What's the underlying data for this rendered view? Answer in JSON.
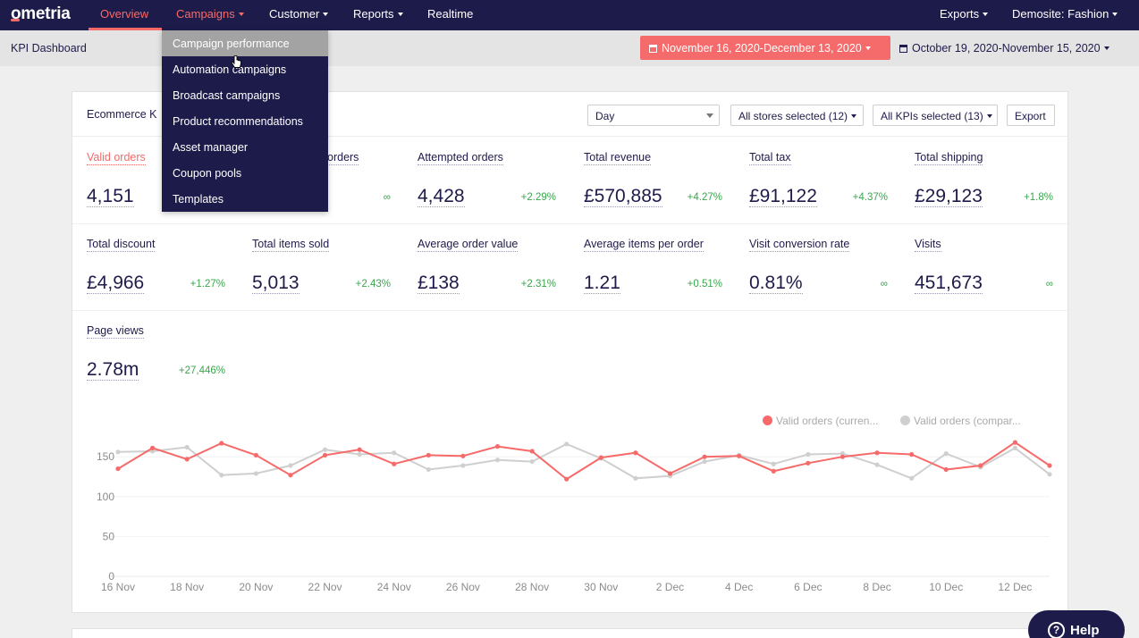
{
  "app": {
    "logo": "ometria"
  },
  "nav": {
    "items": [
      {
        "label": "Overview",
        "active": true
      },
      {
        "label": "Campaigns",
        "dropdown": true,
        "open": true
      },
      {
        "label": "Customer",
        "dropdown": true
      },
      {
        "label": "Reports",
        "dropdown": true
      },
      {
        "label": "Realtime"
      }
    ],
    "right": [
      {
        "label": "Exports",
        "dropdown": true
      },
      {
        "label": "Demosite: Fashion",
        "dropdown": true
      }
    ]
  },
  "campaigns_menu": {
    "items": [
      "Campaign performance",
      "Automation campaigns",
      "Broadcast campaigns",
      "Product recommendations",
      "Asset manager",
      "Coupon pools",
      "Templates"
    ],
    "hovered_index": 0
  },
  "subheader": {
    "title": "KPI Dashboard",
    "date_range": "November 16, 2020-December 13, 2020",
    "compare_range": "October 19, 2020-November 15, 2020"
  },
  "card": {
    "title": "Ecommerce K",
    "granularity": "Day",
    "stores": "All stores selected (12)",
    "kpis_selected": "All KPIs selected (13)",
    "export": "Export"
  },
  "kpis": [
    {
      "label": "Valid orders",
      "value": "4,151",
      "change": "",
      "selected": true
    },
    {
      "label": "orders",
      "value": "",
      "change": "∞"
    },
    {
      "label": "Attempted orders",
      "value": "4,428",
      "change": "+2.29%"
    },
    {
      "label": "Total revenue",
      "value": "£570,885",
      "change": "+4.27%"
    },
    {
      "label": "Total tax",
      "value": "£91,122",
      "change": "+4.37%"
    },
    {
      "label": "Total shipping",
      "value": "£29,123",
      "change": "+1.8%"
    },
    {
      "label": "Total discount",
      "value": "£4,966",
      "change": "+1.27%"
    },
    {
      "label": "Total items sold",
      "value": "5,013",
      "change": "+2.43%"
    },
    {
      "label": "Average order value",
      "value": "£138",
      "change": "+2.31%"
    },
    {
      "label": "Average items per order",
      "value": "1.21",
      "change": "+0.51%"
    },
    {
      "label": "Visit conversion rate",
      "value": "0.81%",
      "change": "∞"
    },
    {
      "label": "Visits",
      "value": "451,673",
      "change": "∞"
    },
    {
      "label": "Page views",
      "value": "2.78m",
      "change": "+27,446%"
    }
  ],
  "chart_data": {
    "type": "line",
    "ylim": [
      0,
      200
    ],
    "yticks": [
      0,
      50,
      100,
      150
    ],
    "x": [
      "16 Nov",
      "17 Nov",
      "18 Nov",
      "19 Nov",
      "20 Nov",
      "21 Nov",
      "22 Nov",
      "23 Nov",
      "24 Nov",
      "25 Nov",
      "26 Nov",
      "27 Nov",
      "28 Nov",
      "29 Nov",
      "30 Nov",
      "1 Dec",
      "2 Dec",
      "3 Dec",
      "4 Dec",
      "5 Dec",
      "6 Dec",
      "7 Dec",
      "8 Dec",
      "9 Dec",
      "10 Dec",
      "11 Dec",
      "12 Dec",
      "13 Dec"
    ],
    "xtick_labels": [
      "16 Nov",
      "18 Nov",
      "20 Nov",
      "22 Nov",
      "24 Nov",
      "26 Nov",
      "28 Nov",
      "30 Nov",
      "2 Dec",
      "4 Dec",
      "6 Dec",
      "8 Dec",
      "10 Dec",
      "12 Dec"
    ],
    "series": [
      {
        "name": "Valid orders (curren...",
        "color": "#f76a6a",
        "values": [
          135,
          161,
          147,
          167,
          152,
          127,
          152,
          159,
          141,
          152,
          151,
          163,
          157,
          122,
          149,
          155,
          129,
          150,
          151,
          132,
          142,
          150,
          155,
          153,
          134,
          139,
          168,
          139
        ]
      },
      {
        "name": "Valid orders (compar...",
        "color": "#cfcfcf",
        "values": [
          156,
          157,
          162,
          127,
          129,
          139,
          159,
          153,
          155,
          134,
          139,
          146,
          144,
          166,
          148,
          123,
          126,
          144,
          152,
          141,
          153,
          154,
          140,
          123,
          154,
          137,
          161,
          128
        ]
      }
    ]
  },
  "help": {
    "label": "Help"
  }
}
